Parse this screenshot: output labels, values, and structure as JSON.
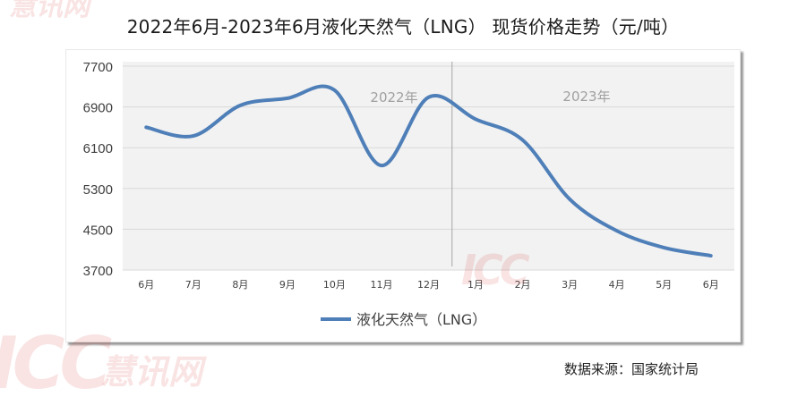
{
  "title": "2022年6月-2023年6月液化天然气（LNG） 现货价格走势（元/吨）",
  "source": "数据来源：国家统计局",
  "watermark": {
    "logo": "ICC",
    "text": "慧讯网"
  },
  "colors": {
    "line": "#4f7fb8",
    "plot_bg": "#f2f2f2",
    "grid": "#d9d9d9",
    "divider": "#a6a6a6",
    "year_label": "#a0a0a0"
  },
  "chart_data": {
    "type": "line",
    "title": "2022年6月-2023年6月液化天然气（LNG） 现货价格走势（元/吨）",
    "xlabel": "",
    "ylabel": "元/吨",
    "categories": [
      "6月",
      "7月",
      "8月",
      "9月",
      "10月",
      "11月",
      "12月",
      "1月",
      "2月",
      "3月",
      "4月",
      "5月",
      "6月"
    ],
    "series": [
      {
        "name": "液化天然气（LNG）",
        "values": [
          6500,
          6330,
          6930,
          7070,
          7230,
          5750,
          7090,
          6660,
          6250,
          5090,
          4470,
          4140,
          3980
        ]
      }
    ],
    "ylim": [
      3700,
      7700
    ],
    "yticks": [
      7700,
      6900,
      6100,
      5300,
      4500,
      3700
    ],
    "grid": true,
    "legend_position": "bottom",
    "annotations": [
      {
        "text": "2022年",
        "position": "left segment"
      },
      {
        "text": "2023年",
        "position": "right segment"
      }
    ],
    "divider_between": [
      "12月",
      "1月"
    ]
  }
}
